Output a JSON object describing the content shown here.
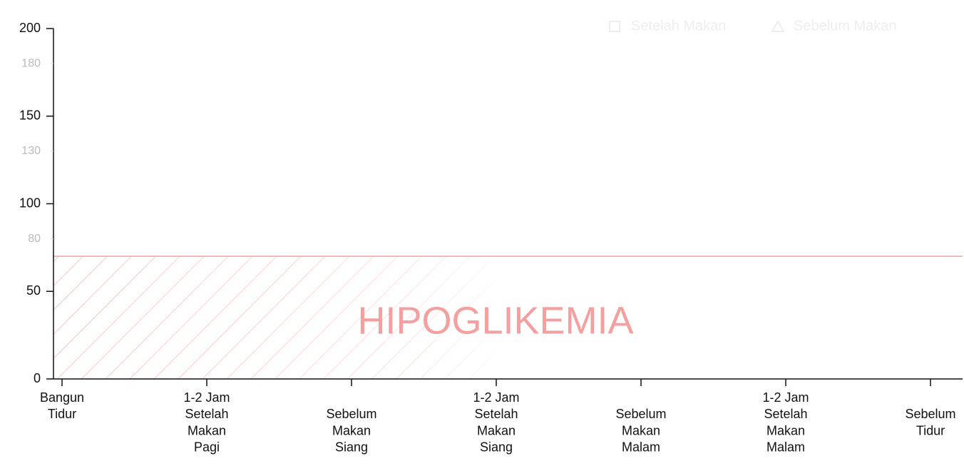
{
  "chart_data": {
    "type": "line",
    "categories": [
      [
        "Bangun",
        "Tidur"
      ],
      [
        "1-2 Jam",
        "Setelah",
        "Makan",
        "Pagi"
      ],
      [
        "Sebelum",
        "Makan",
        "Siang"
      ],
      [
        "1-2 Jam",
        "Setelah",
        "Makan",
        "Siang"
      ],
      [
        "Sebelum",
        "Makan",
        "Malam"
      ],
      [
        "1-2 Jam",
        "Setelah",
        "Makan",
        "Malam"
      ],
      [
        "Sebelum",
        "Tidur"
      ]
    ],
    "series": [
      {
        "name": "Setelah Makan",
        "color": "#eeeeee",
        "marker": "square",
        "values": [
          null,
          null,
          null,
          null,
          null,
          null,
          null
        ]
      },
      {
        "name": "Sebelum Makan",
        "color": "#eeeeee",
        "marker": "triangle",
        "values": [
          null,
          null,
          null,
          null,
          null,
          null,
          null
        ]
      }
    ],
    "ylim": [
      0,
      200
    ],
    "yticks": [
      0,
      50,
      100,
      150,
      200
    ],
    "reference_ticks": [
      80,
      130,
      180
    ],
    "bands": [
      {
        "label": "HIPOGLIKEMIA",
        "from": 0,
        "to": 70,
        "color": "#f4a0a0"
      }
    ],
    "legend": "top-right"
  }
}
